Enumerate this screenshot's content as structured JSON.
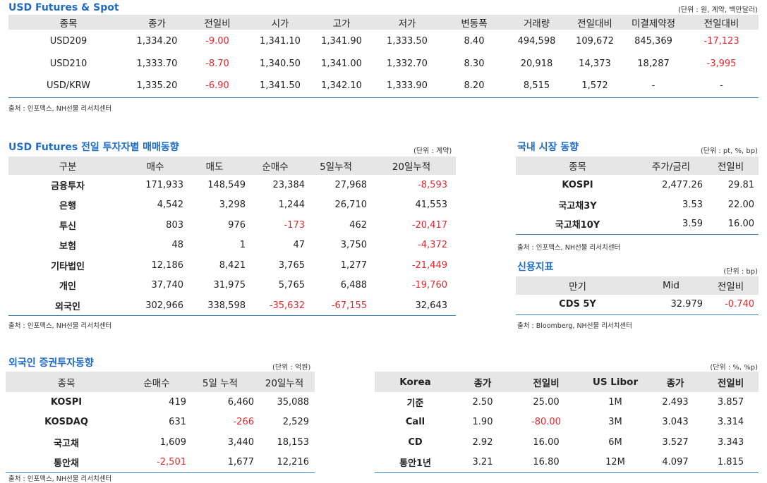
{
  "futures_spot": {
    "title": "USD Futures & Spot",
    "unit": "(단위 : 원, 계약, 백만달러)",
    "headers": [
      "종목",
      "종가",
      "전일비",
      "시가",
      "고가",
      "저가",
      "변동폭",
      "거래량",
      "전일대비",
      "미결제약정",
      "전일대비"
    ],
    "rows": [
      {
        "cells": [
          "USD209",
          "1,334.20",
          "-9.00",
          "1,341.10",
          "1,341.90",
          "1,333.50",
          "8.40",
          "494,598",
          "109,672",
          "845,369",
          "-17,123"
        ],
        "red": [
          2,
          10
        ]
      },
      {
        "cells": [
          "USD210",
          "1,333.70",
          "-8.70",
          "1,340.50",
          "1,341.00",
          "1,332.70",
          "8.30",
          "20,918",
          "14,373",
          "18,287",
          "-3,995"
        ],
        "red": [
          2,
          10
        ]
      },
      {
        "cells": [
          "USD/KRW",
          "1,335.20",
          "-6.90",
          "1,341.50",
          "1,342.10",
          "1,333.90",
          "8.20",
          "8,515",
          "1,572",
          "-",
          "-"
        ],
        "red": [
          2
        ]
      }
    ],
    "source": "출처 : 인포맥스, NH선물 리서치센터"
  },
  "investors": {
    "title": "USD Futures 전일 투자자별 매매동향",
    "unit": "(단위 : 계약)",
    "headers": [
      "구분",
      "매수",
      "매도",
      "순매수",
      "5일누적",
      "20일누적"
    ],
    "rows": [
      {
        "cells": [
          "금융투자",
          "171,933",
          "148,549",
          "23,384",
          "27,968",
          "-8,593"
        ],
        "red": [
          5
        ]
      },
      {
        "cells": [
          "은행",
          "4,542",
          "3,298",
          "1,244",
          "26,710",
          "41,553"
        ],
        "red": []
      },
      {
        "cells": [
          "투신",
          "803",
          "976",
          "-173",
          "462",
          "-20,417"
        ],
        "red": [
          3,
          5
        ]
      },
      {
        "cells": [
          "보험",
          "48",
          "1",
          "47",
          "3,750",
          "-4,372"
        ],
        "red": [
          5
        ]
      },
      {
        "cells": [
          "기타법인",
          "12,186",
          "8,421",
          "3,765",
          "1,277",
          "-21,449"
        ],
        "red": [
          5
        ]
      },
      {
        "cells": [
          "개인",
          "37,740",
          "31,975",
          "5,765",
          "6,488",
          "-19,760"
        ],
        "red": [
          5
        ]
      },
      {
        "cells": [
          "외국인",
          "302,966",
          "338,598",
          "-35,632",
          "-67,155",
          "32,643"
        ],
        "red": [
          3,
          4
        ]
      }
    ],
    "source": "출처 : 인포맥스, NH선물 리서치센터"
  },
  "domestic": {
    "title": "국내 시장 동향",
    "unit": "(단위 : pt, %, bp)",
    "headers": [
      "종목",
      "주가/금리",
      "전일비"
    ],
    "rows": [
      {
        "cells": [
          "KOSPI",
          "2,477.26",
          "29.81"
        ],
        "red": []
      },
      {
        "cells": [
          "국고채3Y",
          "3.53",
          "22.00"
        ],
        "red": []
      },
      {
        "cells": [
          "국고채10Y",
          "3.59",
          "16.00"
        ],
        "red": []
      }
    ],
    "source": "출처 : 인포맥스, NH선물 리서치센터"
  },
  "credit": {
    "title": "신용지표",
    "unit": "(단위 : bp)",
    "headers": [
      "만기",
      "Mid",
      "전일비"
    ],
    "rows": [
      {
        "cells": [
          "CDS 5Y",
          "32.979",
          "-0.740"
        ],
        "red": [
          2
        ]
      }
    ],
    "source": "출처 : Bloomberg, NH선물 리서치센터"
  },
  "foreign_sec": {
    "title": "외국인 증권투자동향",
    "unit": "(단위 : 억원)",
    "headers": [
      "종목",
      "순매수",
      "5일 누적",
      "20일누적"
    ],
    "rows": [
      {
        "cells": [
          "KOSPI",
          "419",
          "6,460",
          "35,088"
        ],
        "red": []
      },
      {
        "cells": [
          "KOSDAQ",
          "631",
          "-266",
          "2,529"
        ],
        "red": [
          2
        ]
      },
      {
        "cells": [
          "국고채",
          "1,609",
          "3,440",
          "18,153"
        ],
        "red": []
      },
      {
        "cells": [
          "통안채",
          "-2,501",
          "1,677",
          "12,216"
        ],
        "red": [
          1
        ]
      }
    ],
    "source": "출처 : 인포맥스, NH선물 리서치센터"
  },
  "rates": {
    "unit": "(단위 : %, %p)",
    "headers": [
      "Korea",
      "종가",
      "전일비",
      "US Libor",
      "종가",
      "전일비"
    ],
    "rows": [
      {
        "cells": [
          "기준",
          "2.50",
          "25.00",
          "1M",
          "2.493",
          "3.857"
        ],
        "red": []
      },
      {
        "cells": [
          "Call",
          "1.90",
          "-80.00",
          "3M",
          "3.043",
          "3.314"
        ],
        "red": [
          2
        ]
      },
      {
        "cells": [
          "CD",
          "2.92",
          "16.00",
          "6M",
          "3.527",
          "3.343"
        ],
        "red": []
      },
      {
        "cells": [
          "통안1년",
          "3.21",
          "16.80",
          "12M",
          "4.097",
          "1.815"
        ],
        "red": []
      }
    ]
  }
}
